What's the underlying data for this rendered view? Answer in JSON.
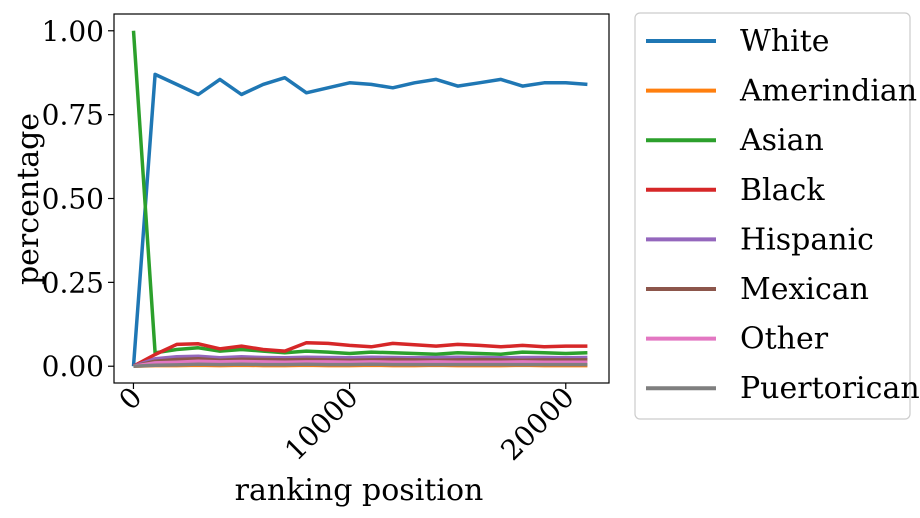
{
  "chart_data": {
    "type": "line",
    "xlabel": "ranking position",
    "ylabel": "percentage",
    "xlim": [
      -900,
      22000
    ],
    "ylim": [
      -0.05,
      1.05
    ],
    "x_ticks": [
      0,
      10000,
      20000
    ],
    "x_tick_labels": [
      "0",
      "10000",
      "20000"
    ],
    "y_ticks": [
      0,
      0.25,
      0.5,
      0.75,
      1.0
    ],
    "y_tick_labels": [
      "0.00",
      "0.25",
      "0.50",
      "0.75",
      "1.00"
    ],
    "grid": false,
    "legend": "outside right",
    "x": [
      0,
      1000,
      2000,
      3000,
      4000,
      5000,
      6000,
      7000,
      8000,
      9000,
      10000,
      11000,
      12000,
      13000,
      14000,
      15000,
      16000,
      17000,
      18000,
      19000,
      20000,
      21000
    ],
    "series": [
      {
        "name": "White",
        "color": "#1f77b4",
        "values": [
          0.0,
          0.87,
          0.84,
          0.81,
          0.855,
          0.81,
          0.84,
          0.86,
          0.815,
          0.83,
          0.845,
          0.84,
          0.83,
          0.845,
          0.855,
          0.835,
          0.845,
          0.855,
          0.835,
          0.845,
          0.845,
          0.84
        ]
      },
      {
        "name": "Amerindian",
        "color": "#ff7f0e",
        "values": [
          0.0,
          0.002,
          0.002,
          0.003,
          0.002,
          0.003,
          0.002,
          0.002,
          0.003,
          0.002,
          0.002,
          0.003,
          0.002,
          0.002,
          0.003,
          0.002,
          0.002,
          0.002,
          0.003,
          0.002,
          0.002,
          0.002
        ]
      },
      {
        "name": "Asian",
        "color": "#2ca02c",
        "values": [
          1.0,
          0.04,
          0.05,
          0.055,
          0.045,
          0.05,
          0.045,
          0.04,
          0.045,
          0.042,
          0.038,
          0.042,
          0.04,
          0.038,
          0.036,
          0.04,
          0.038,
          0.036,
          0.042,
          0.04,
          0.038,
          0.04
        ]
      },
      {
        "name": "Black",
        "color": "#d62728",
        "values": [
          0.0,
          0.035,
          0.065,
          0.067,
          0.052,
          0.06,
          0.05,
          0.045,
          0.07,
          0.068,
          0.062,
          0.058,
          0.068,
          0.064,
          0.06,
          0.065,
          0.062,
          0.058,
          0.062,
          0.058,
          0.06,
          0.06
        ]
      },
      {
        "name": "Hispanic",
        "color": "#9467bd",
        "values": [
          0.0,
          0.022,
          0.028,
          0.03,
          0.025,
          0.028,
          0.026,
          0.025,
          0.027,
          0.026,
          0.025,
          0.027,
          0.026,
          0.025,
          0.026,
          0.027,
          0.026,
          0.025,
          0.026,
          0.026,
          0.025,
          0.026
        ]
      },
      {
        "name": "Mexican",
        "color": "#8c564b",
        "values": [
          0.0,
          0.015,
          0.02,
          0.022,
          0.018,
          0.021,
          0.02,
          0.019,
          0.02,
          0.019,
          0.018,
          0.019,
          0.02,
          0.019,
          0.018,
          0.019,
          0.02,
          0.019,
          0.018,
          0.019,
          0.019,
          0.019
        ]
      },
      {
        "name": "Other",
        "color": "#e377c2",
        "values": [
          0.0,
          0.01,
          0.012,
          0.015,
          0.013,
          0.014,
          0.013,
          0.012,
          0.013,
          0.013,
          0.012,
          0.013,
          0.012,
          0.012,
          0.013,
          0.012,
          0.012,
          0.012,
          0.013,
          0.012,
          0.012,
          0.012
        ]
      },
      {
        "name": "Puertorican",
        "color": "#7f7f7f",
        "values": [
          0.0,
          0.003,
          0.004,
          0.006,
          0.005,
          0.006,
          0.005,
          0.005,
          0.006,
          0.005,
          0.005,
          0.006,
          0.005,
          0.005,
          0.005,
          0.005,
          0.005,
          0.005,
          0.005,
          0.005,
          0.005,
          0.005
        ]
      }
    ]
  }
}
